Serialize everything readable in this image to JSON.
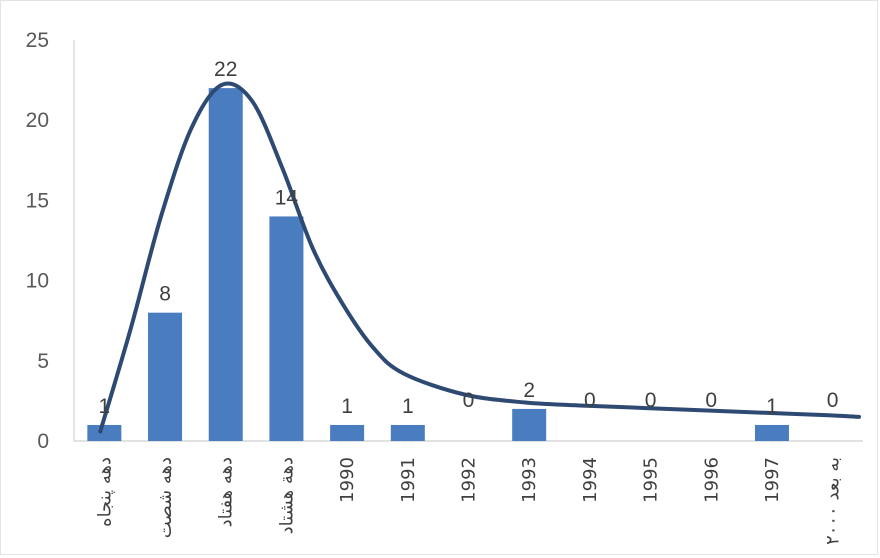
{
  "chart_data": {
    "type": "bar",
    "categories": [
      "دهه پنجاه",
      "دهه شصت",
      "دهه هفتاد",
      "دهة هشتاد",
      "1990",
      "1991",
      "1992",
      "1993",
      "1994",
      "1995",
      "1996",
      "1997",
      "۲۰۰۰ به بعد"
    ],
    "values": [
      1,
      8,
      22,
      14,
      1,
      1,
      0,
      2,
      0,
      0,
      0,
      1,
      0
    ],
    "data_labels": [
      "1",
      "8",
      "22",
      "14",
      "1",
      "1",
      "0",
      "2",
      "0",
      "0",
      "0",
      "1",
      "0"
    ],
    "ylim": [
      0,
      25
    ],
    "yticks": [
      "0",
      "5",
      "10",
      "15",
      "20",
      "25"
    ],
    "title": "",
    "xlabel": "",
    "ylabel": "",
    "trend_curve": {
      "x": [
        0,
        0.5,
        1,
        1.5,
        2,
        2.5,
        3,
        3.5,
        4,
        4.5,
        5,
        6,
        7,
        8,
        9,
        10,
        11,
        12,
        12.5
      ],
      "y": [
        0.6,
        7,
        14,
        19.5,
        22.2,
        21.2,
        17,
        12,
        8.5,
        5.8,
        4.2,
        2.9,
        2.4,
        2.2,
        2.05,
        1.9,
        1.75,
        1.6,
        1.5
      ]
    },
    "grid": false,
    "legend": "none",
    "bar_color": "#4a7cc0",
    "curve_color": "#2e4a73"
  }
}
